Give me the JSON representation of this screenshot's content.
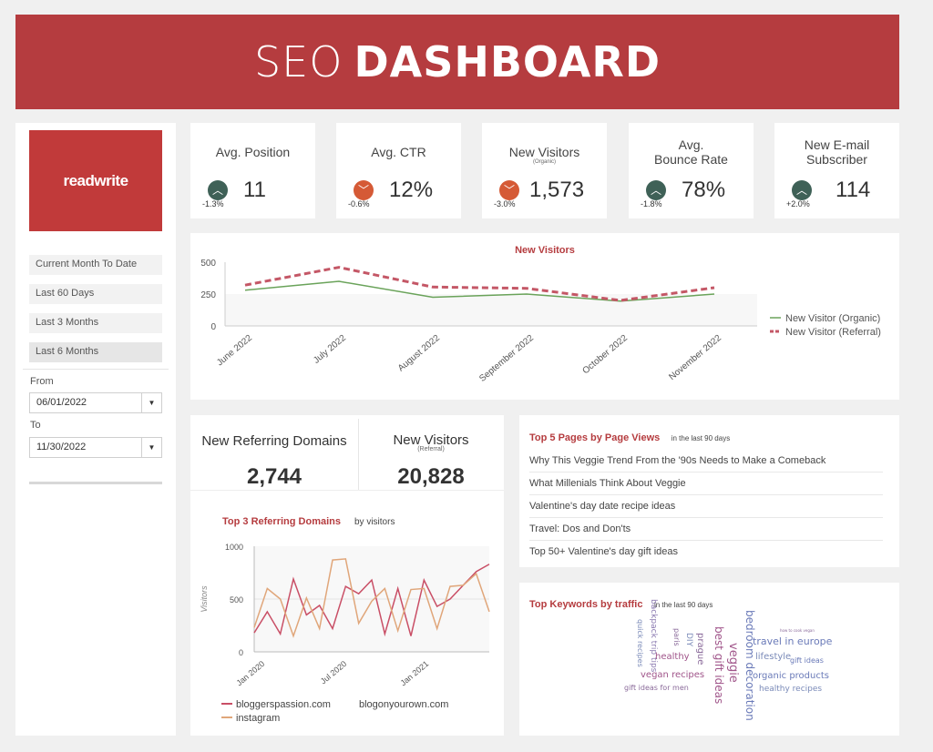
{
  "header": {
    "title_light": "SEO",
    "title_bold": "DASHBOARD"
  },
  "sidebar": {
    "logo": "readwrite",
    "ranges": [
      "Current Month To Date",
      "Last 60 Days",
      "Last 3 Months",
      "Last 6 Months"
    ],
    "active_range": "Last 6 Months",
    "from_label": "From",
    "from_value": "06/01/2022",
    "to_label": "To",
    "to_value": "11/30/2022"
  },
  "kpis": [
    {
      "title": "Avg. Position",
      "sub": "",
      "value": "11",
      "delta": "-1.3%",
      "direction": "up"
    },
    {
      "title": "Avg. CTR",
      "sub": "",
      "value": "12%",
      "delta": "-0.6%",
      "direction": "down"
    },
    {
      "title": "New Visitors",
      "sub": "(Organic)",
      "value": "1,573",
      "delta": "-3.0%",
      "direction": "down"
    },
    {
      "title": "Avg.",
      "title2": "Bounce Rate",
      "value": "78%",
      "delta": "-1.8%",
      "direction": "up"
    },
    {
      "title": "New E-mail",
      "title2": "Subscriber",
      "value": "114",
      "delta": "+2.0%",
      "direction": "up"
    }
  ],
  "colors": {
    "brand": "#b53c3f",
    "organic": "#6aa35a",
    "referral": "#c45766",
    "up": "#3f6157",
    "down": "#d55a36",
    "instagram": "#e0a67a",
    "bloggerspassion": "#c94f66"
  },
  "icons": {
    "up": "chevron-up-icon",
    "down": "chevron-down-icon",
    "dropdown": "caret-down-icon"
  },
  "chart_data": [
    {
      "type": "line",
      "title": "New Visitors",
      "categories": [
        "June 2022",
        "July 2022",
        "August 2022",
        "September 2022",
        "October 2022",
        "November 2022"
      ],
      "series": [
        {
          "name": "New Visitor (Organic)",
          "values": [
            280,
            350,
            225,
            250,
            195,
            250
          ]
        },
        {
          "name": "New Visitor (Referral)",
          "values": [
            320,
            460,
            305,
            295,
            200,
            300
          ]
        }
      ],
      "yticks": [
        "500",
        "250",
        "0"
      ],
      "ylim": [
        0,
        500
      ],
      "legend": "right"
    },
    {
      "type": "line",
      "title": "Top 3 Referring Domains",
      "subtitle": "by visitors",
      "ylabel": "Visitors",
      "xticks": [
        "Jan 2020",
        "Jul 2020",
        "Jan 2021"
      ],
      "yticks": [
        "1000",
        "500",
        "0"
      ],
      "ylim": [
        0,
        1000
      ],
      "series": [
        {
          "name": "bloggerspassion.com",
          "values": [
            180,
            380,
            170,
            690,
            350,
            440,
            220,
            620,
            550,
            680,
            170,
            600,
            150,
            680,
            430,
            500,
            630,
            760,
            830
          ]
        },
        {
          "name": "instagram",
          "values": [
            230,
            600,
            500,
            150,
            510,
            220,
            870,
            880,
            270,
            480,
            600,
            200,
            590,
            600,
            220,
            620,
            630,
            740,
            380
          ]
        },
        {
          "name": "blogonyourown.com",
          "values": []
        }
      ],
      "legend": "bottom"
    }
  ],
  "referring": {
    "domains_title": "New Referring Domains",
    "domains_value": "2,744",
    "visitors_title": "New Visitors",
    "visitors_sub": "(Referral)",
    "visitors_value": "20,828"
  },
  "pages": {
    "title": "Top 5 Pages by Page Views",
    "subtitle": "in the last 90 days",
    "items": [
      "Why This Veggie Trend From the '90s Needs to Make a Comeback",
      "What Millenials Think About Veggie",
      "Valentine's day date recipe ideas",
      "Travel: Dos and Don'ts",
      "Top 50+ Valentine's day gift ideas"
    ]
  },
  "keywords": {
    "title": "Top Keywords by traffic",
    "subtitle": "in the last 90 days",
    "words": [
      "backpack trip tips",
      "quick recipes",
      "paris",
      "DIY",
      "prague",
      "best gift ideas",
      "veggie",
      "bedroom decoration",
      "how to cook vegan",
      "travel in europe",
      "healthy",
      "lifestyle",
      "gift ideas",
      "vegan recipes",
      "organic products",
      "gift ideas for men",
      "healthy recipes"
    ]
  }
}
